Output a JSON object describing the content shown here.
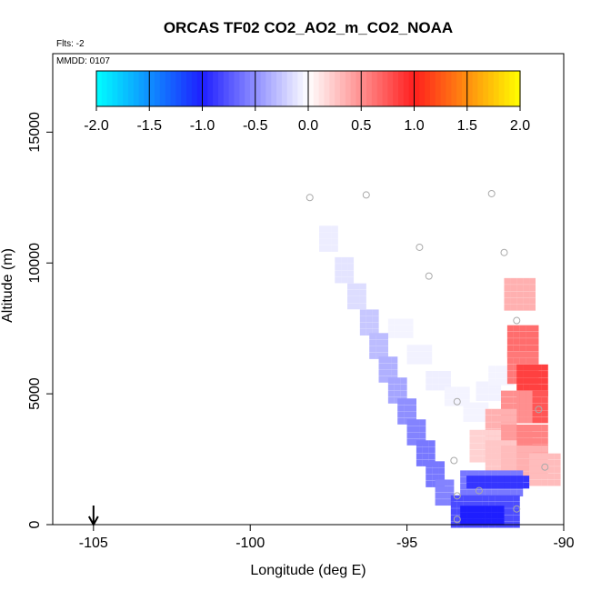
{
  "chart_data": {
    "type": "heatmap",
    "title": "ORCAS TF02 CO2_AO2_m_CO2_NOAA",
    "flights_note": "Flts: -2",
    "date_note": "MMDD: 0107",
    "xlabel": "Longitude (deg E)",
    "ylabel": "Altitude (m)",
    "xlim": [
      -106.3,
      -90.0
    ],
    "ylim": [
      0,
      18000
    ],
    "x_ticks": [
      -105,
      -100,
      -95,
      -90
    ],
    "x_tick_labels": [
      "-105",
      "-100",
      "-95",
      "-90"
    ],
    "y_ticks": [
      0,
      5000,
      10000,
      15000
    ],
    "y_tick_labels": [
      "0",
      "5000",
      "10000",
      "15000"
    ],
    "colorbar": {
      "range": [
        -2.0,
        2.0
      ],
      "ticks": [
        -2.0,
        -1.5,
        -1.0,
        -0.5,
        0.0,
        0.5,
        1.0,
        1.5,
        2.0
      ],
      "tick_labels": [
        "-2.0",
        "-1.5",
        "-1.0",
        "-0.5",
        "0.0",
        "0.5",
        "1.0",
        "1.5",
        "2.0"
      ],
      "stops": [
        {
          "v": -2.0,
          "color": "#00ffff"
        },
        {
          "v": -1.0,
          "color": "#1e1eff"
        },
        {
          "v": 0.0,
          "color": "#ffffff"
        },
        {
          "v": 1.0,
          "color": "#ff1e1e"
        },
        {
          "v": 2.0,
          "color": "#ffff00"
        }
      ]
    },
    "diagonal_band": [
      {
        "lon": -97.5,
        "alt": 11000,
        "v": -0.08
      },
      {
        "lon": -97.0,
        "alt": 9800,
        "v": -0.12
      },
      {
        "lon": -96.6,
        "alt": 8800,
        "v": -0.15
      },
      {
        "lon": -96.2,
        "alt": 7800,
        "v": -0.25
      },
      {
        "lon": -95.9,
        "alt": 6900,
        "v": -0.3
      },
      {
        "lon": -95.6,
        "alt": 6000,
        "v": -0.35
      },
      {
        "lon": -95.3,
        "alt": 5200,
        "v": -0.4
      },
      {
        "lon": -95.0,
        "alt": 4400,
        "v": -0.5
      },
      {
        "lon": -94.7,
        "alt": 3600,
        "v": -0.55
      },
      {
        "lon": -94.4,
        "alt": 2800,
        "v": -0.6
      },
      {
        "lon": -94.1,
        "alt": 2000,
        "v": -0.6
      },
      {
        "lon": -93.8,
        "alt": 1300,
        "v": -0.55
      }
    ],
    "low_level_blocks": [
      {
        "lon0": -93.2,
        "lon1": -91.4,
        "alt0": 1200,
        "alt1": 2000,
        "v": -0.6
      },
      {
        "lon0": -93.0,
        "lon1": -91.2,
        "alt0": 1500,
        "alt1": 1800,
        "v": -0.9
      },
      {
        "lon0": -93.5,
        "lon1": -91.4,
        "alt0": 0,
        "alt1": 1100,
        "v": -0.8
      },
      {
        "lon0": -93.2,
        "lon1": -92.0,
        "alt0": 100,
        "alt1": 700,
        "v": -1.0
      }
    ],
    "upper_faint_band": [
      {
        "lon": -95.2,
        "alt": 7600,
        "v": -0.05
      },
      {
        "lon": -94.6,
        "alt": 6600,
        "v": -0.06
      },
      {
        "lon": -94.0,
        "alt": 5600,
        "v": -0.07
      },
      {
        "lon": -93.4,
        "alt": 5000,
        "v": -0.05
      },
      {
        "lon": -92.8,
        "alt": 4400,
        "v": -0.05
      },
      {
        "lon": -92.4,
        "alt": 5200,
        "v": -0.06
      },
      {
        "lon": -92.0,
        "alt": 5800,
        "v": -0.05
      }
    ],
    "red_plume": [
      {
        "lon": -91.3,
        "alt": 7000,
        "v": 0.65
      },
      {
        "lon": -91.3,
        "alt": 6000,
        "v": 0.6
      },
      {
        "lon": -91.0,
        "alt": 5500,
        "v": 0.85
      },
      {
        "lon": -91.0,
        "alt": 4500,
        "v": 0.75
      },
      {
        "lon": -91.5,
        "alt": 4500,
        "v": 0.5
      },
      {
        "lon": -92.0,
        "alt": 3800,
        "v": 0.35
      },
      {
        "lon": -91.5,
        "alt": 3200,
        "v": 0.45
      },
      {
        "lon": -91.0,
        "alt": 3200,
        "v": 0.55
      },
      {
        "lon": -92.5,
        "alt": 3000,
        "v": 0.2
      },
      {
        "lon": -92.0,
        "alt": 2600,
        "v": 0.25
      },
      {
        "lon": -91.5,
        "alt": 2400,
        "v": 0.3
      },
      {
        "lon": -91.0,
        "alt": 2400,
        "v": 0.35
      },
      {
        "lon": -91.4,
        "alt": 8800,
        "v": 0.35
      },
      {
        "lon": -90.6,
        "alt": 2100,
        "v": 0.3
      }
    ],
    "sample_circles": [
      {
        "lon": -98.1,
        "alt": 12500
      },
      {
        "lon": -96.3,
        "alt": 12600
      },
      {
        "lon": -92.3,
        "alt": 12650
      },
      {
        "lon": -94.6,
        "alt": 10600
      },
      {
        "lon": -91.9,
        "alt": 10400
      },
      {
        "lon": -94.3,
        "alt": 9500
      },
      {
        "lon": -91.5,
        "alt": 7800
      },
      {
        "lon": -93.4,
        "alt": 4700
      },
      {
        "lon": -90.8,
        "alt": 4400
      },
      {
        "lon": -93.5,
        "alt": 2450
      },
      {
        "lon": -90.6,
        "alt": 2200
      },
      {
        "lon": -93.4,
        "alt": 1100
      },
      {
        "lon": -92.7,
        "alt": 1300
      },
      {
        "lon": -91.5,
        "alt": 600
      },
      {
        "lon": -93.4,
        "alt": 200
      }
    ],
    "marker_arrow": {
      "lon": -105.0
    }
  }
}
